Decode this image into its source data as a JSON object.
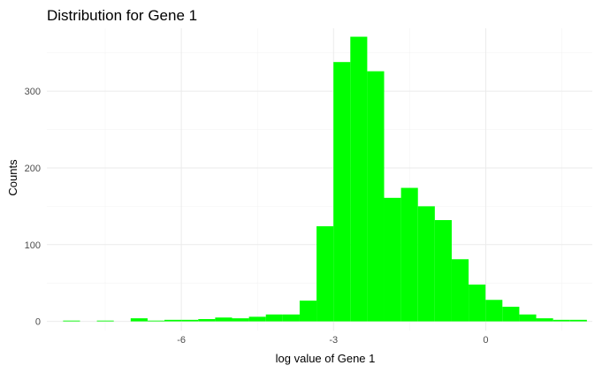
{
  "chart_data": {
    "type": "bar",
    "title": "Distribution for Gene 1",
    "xlabel": "log value of Gene 1",
    "ylabel": "Counts",
    "xlim": [
      -8.65,
      2.1
    ],
    "ylim": [
      -12,
      382
    ],
    "x_ticks": [
      -6,
      -3,
      0
    ],
    "y_ticks": [
      0,
      100,
      200,
      300
    ],
    "x_tick_labels": [
      "-6",
      "-3",
      "0"
    ],
    "y_tick_labels": [
      "0",
      "100",
      "200",
      "300"
    ],
    "bin_width": 0.333,
    "bins": [
      {
        "start": -8.33,
        "count": 1
      },
      {
        "start": -7.997,
        "count": 0
      },
      {
        "start": -7.664,
        "count": 1
      },
      {
        "start": -7.331,
        "count": 0
      },
      {
        "start": -6.998,
        "count": 4
      },
      {
        "start": -6.665,
        "count": 1
      },
      {
        "start": -6.332,
        "count": 2
      },
      {
        "start": -5.999,
        "count": 2
      },
      {
        "start": -5.666,
        "count": 3
      },
      {
        "start": -5.333,
        "count": 5
      },
      {
        "start": -5.0,
        "count": 4
      },
      {
        "start": -4.667,
        "count": 6
      },
      {
        "start": -4.334,
        "count": 9
      },
      {
        "start": -4.001,
        "count": 9
      },
      {
        "start": -3.668,
        "count": 27
      },
      {
        "start": -3.335,
        "count": 124
      },
      {
        "start": -3.002,
        "count": 338
      },
      {
        "start": -2.669,
        "count": 371
      },
      {
        "start": -2.336,
        "count": 326
      },
      {
        "start": -2.003,
        "count": 161
      },
      {
        "start": -1.67,
        "count": 174
      },
      {
        "start": -1.337,
        "count": 150
      },
      {
        "start": -1.004,
        "count": 132
      },
      {
        "start": -0.671,
        "count": 81
      },
      {
        "start": -0.338,
        "count": 48
      },
      {
        "start": -0.005,
        "count": 28
      },
      {
        "start": 0.328,
        "count": 19
      },
      {
        "start": 0.661,
        "count": 9
      },
      {
        "start": 0.994,
        "count": 4
      },
      {
        "start": 1.327,
        "count": 2
      },
      {
        "start": 1.66,
        "count": 2
      }
    ],
    "bar_color": "#00ff00",
    "grid": true,
    "legend": "none"
  }
}
